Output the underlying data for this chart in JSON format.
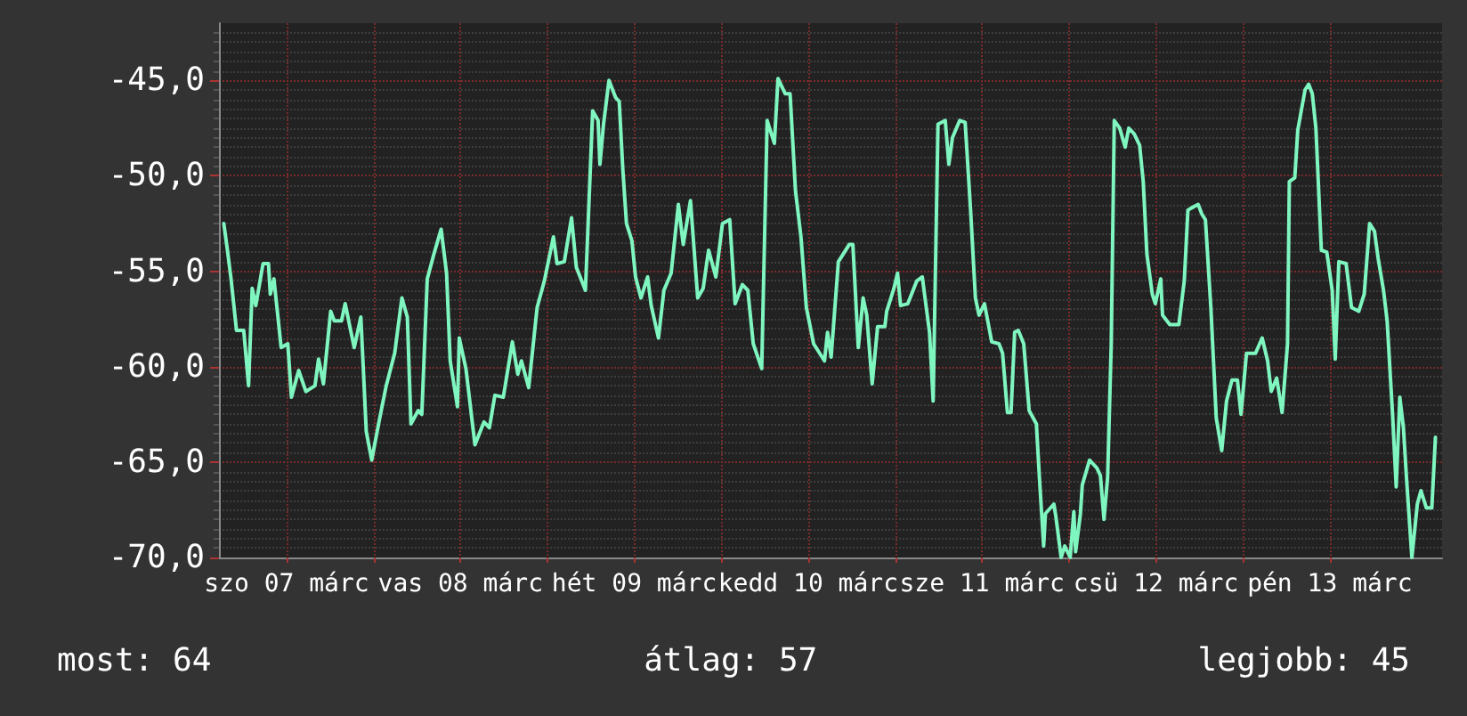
{
  "chart_data": {
    "type": "line",
    "marker": "none",
    "line_style": "solid",
    "grid": true,
    "xlim": [
      "--03-07T02:40",
      "--03-14T03:30"
    ],
    "xticks": [
      {
        "value": "--03-07T12:00",
        "label": "szo 07 márc"
      },
      {
        "value": "--03-08T00:00",
        "label": null
      },
      {
        "value": "--03-08T12:00",
        "label": "vas 08 márc"
      },
      {
        "value": "--03-09T00:00",
        "label": null
      },
      {
        "value": "--03-09T12:00",
        "label": "hét 09 márc"
      },
      {
        "value": "--03-10T00:00",
        "label": null
      },
      {
        "value": "--03-10T12:00",
        "label": "kedd 10 márc"
      },
      {
        "value": "--03-11T00:00",
        "label": null
      },
      {
        "value": "--03-11T12:00",
        "label": "sze 11 márc"
      },
      {
        "value": "--03-12T00:00",
        "label": null
      },
      {
        "value": "--03-12T12:00",
        "label": "csü 12 márc"
      },
      {
        "value": "--03-13T00:00",
        "label": null
      },
      {
        "value": "--03-13T12:00",
        "label": "pén 13 márc"
      }
    ],
    "ylim": [
      -70,
      -42
    ],
    "yticks": [
      {
        "value": -70,
        "label": "-70,0"
      },
      {
        "value": -65,
        "label": "-65,0"
      },
      {
        "value": -60,
        "label": "-60,0"
      },
      {
        "value": -55,
        "label": "-55,0"
      },
      {
        "value": -50,
        "label": "-50,0"
      },
      {
        "value": -45,
        "label": "-45,0"
      }
    ],
    "annotations": [
      "most: 64",
      "átlag: 57",
      "legjobb: 45"
    ],
    "series": [
      {
        "color": "#7ff5c0",
        "x": [
          "--03-07T03:20",
          "--03-07T03:50",
          "--03-07T04:20",
          "--03-07T05:05",
          "--03-07T06:05",
          "--03-07T06:45",
          "--03-07T07:15",
          "--03-07T07:45",
          "--03-07T08:45",
          "--03-07T09:30",
          "--03-07T09:45",
          "--03-07T10:15",
          "--03-07T11:15",
          "--03-07T12:10",
          "--03-07T12:40",
          "--03-07T13:40",
          "--03-07T14:40",
          "--03-07T15:55",
          "--03-07T16:25",
          "--03-07T17:05",
          "--03-07T18:05",
          "--03-07T18:35",
          "--03-07T19:35",
          "--03-07T20:05",
          "--03-07T21:20",
          "--03-07T22:15",
          "--03-07T23:00",
          "--03-07T23:45",
          "--03-08T00:45",
          "--03-08T01:45",
          "--03-08T02:55",
          "--03-08T03:55",
          "--03-08T04:40",
          "--03-08T05:10",
          "--03-08T06:10",
          "--03-08T06:40",
          "--03-08T07:25",
          "--03-08T08:20",
          "--03-08T09:20",
          "--03-08T10:05",
          "--03-08T10:35",
          "--03-08T11:35",
          "--03-08T11:50",
          "--03-08T12:45",
          "--03-08T14:00",
          "--03-08T15:15",
          "--03-08T16:00",
          "--03-08T16:45",
          "--03-08T17:55",
          "--03-08T19:10",
          "--03-08T19:55",
          "--03-08T20:25",
          "--03-08T21:25",
          "--03-08T22:35",
          "--03-08T23:35",
          "--03-09T00:50",
          "--03-09T01:20",
          "--03-09T02:20",
          "--03-09T03:20",
          "--03-09T04:00",
          "--03-09T05:15",
          "--03-09T06:15",
          "--03-09T07:00",
          "--03-09T07:15",
          "--03-09T07:45",
          "--03-09T08:30",
          "--03-09T09:25",
          "--03-09T09:55",
          "--03-09T10:25",
          "--03-09T10:55",
          "--03-09T11:40",
          "--03-09T12:10",
          "--03-09T12:55",
          "--03-09T13:50",
          "--03-09T14:20",
          "--03-09T15:20",
          "--03-09T16:05",
          "--03-09T17:05",
          "--03-09T18:05",
          "--03-09T18:45",
          "--03-09T19:45",
          "--03-09T20:45",
          "--03-09T21:30",
          "--03-09T22:15",
          "--03-09T23:15",
          "--03-10T00:10",
          "--03-10T01:10",
          "--03-10T01:55",
          "--03-10T02:55",
          "--03-10T03:40",
          "--03-10T04:25",
          "--03-10T05:35",
          "--03-10T06:20",
          "--03-10T07:20",
          "--03-10T07:50",
          "--03-10T08:50",
          "--03-10T09:30",
          "--03-10T10:15",
          "--03-10T11:00",
          "--03-10T11:45",
          "--03-10T12:45",
          "--03-10T14:15",
          "--03-10T14:40",
          "--03-10T15:10",
          "--03-10T16:10",
          "--03-10T17:40",
          "--03-10T18:10",
          "--03-10T18:55",
          "--03-10T19:35",
          "--03-10T20:05",
          "--03-10T20:50",
          "--03-10T21:35",
          "--03-10T22:35",
          "--03-10T22:50",
          "--03-10T23:50",
          "--03-11T00:20",
          "--03-11T00:45",
          "--03-11T01:45",
          "--03-11T03:00",
          "--03-11T03:45",
          "--03-11T04:45",
          "--03-11T05:15",
          "--03-11T05:55",
          "--03-11T06:55",
          "--03-11T07:25",
          "--03-11T07:55",
          "--03-11T08:55",
          "--03-11T09:40",
          "--03-11T10:25",
          "--03-11T11:05",
          "--03-11T11:35",
          "--03-11T12:20",
          "--03-11T13:20",
          "--03-11T14:20",
          "--03-11T14:50",
          "--03-11T15:30",
          "--03-11T16:00",
          "--03-11T16:30",
          "--03-11T17:00",
          "--03-11T17:45",
          "--03-11T18:30",
          "--03-11T19:30",
          "--03-11T19:55",
          "--03-11T20:30",
          "--03-11T20:45",
          "--03-11T21:55",
          "--03-11T22:10",
          "--03-11T22:55",
          "--03-11T23:25",
          "--03-12T00:10",
          "--03-12T00:40",
          "--03-12T00:55",
          "--03-12T01:35",
          "--03-12T01:50",
          "--03-12T02:50",
          "--03-12T03:50",
          "--03-12T04:20",
          "--03-12T04:50",
          "--03-12T05:20",
          "--03-12T05:50",
          "--03-12T06:15",
          "--03-12T07:00",
          "--03-12T07:45",
          "--03-12T08:15",
          "--03-12T09:00",
          "--03-12T09:45",
          "--03-12T10:15",
          "--03-12T10:45",
          "--03-12T11:30",
          "--03-12T11:55",
          "--03-12T12:40",
          "--03-12T12:55",
          "--03-12T13:55",
          "--03-12T15:10",
          "--03-12T15:55",
          "--03-12T16:25",
          "--03-12T16:50",
          "--03-12T17:50",
          "--03-12T18:20",
          "--03-12T18:50",
          "--03-12T19:35",
          "--03-12T20:20",
          "--03-12T21:05",
          "--03-12T21:45",
          "--03-12T22:30",
          "--03-12T23:15",
          "--03-12T23:45",
          "--03-13T00:30",
          "--03-13T01:45",
          "--03-13T02:40",
          "--03-13T03:25",
          "--03-13T03:55",
          "--03-13T04:40",
          "--03-13T05:25",
          "--03-13T06:10",
          "--03-13T06:25",
          "--03-13T07:10",
          "--03-13T07:35",
          "--03-13T08:35",
          "--03-13T09:05",
          "--03-13T09:35",
          "--03-13T10:05",
          "--03-13T10:50",
          "--03-13T11:35",
          "--03-13T12:20",
          "--03-13T12:45",
          "--03-13T13:15",
          "--03-13T14:15",
          "--03-13T15:00",
          "--03-13T16:00",
          "--03-13T16:45",
          "--03-13T17:30",
          "--03-13T18:10",
          "--03-13T18:40",
          "--03-13T19:25",
          "--03-13T19:55",
          "--03-13T20:40",
          "--03-13T21:10",
          "--03-13T21:40",
          "--03-13T22:10",
          "--03-13T22:35",
          "--03-13T23:20",
          "--03-14T00:05",
          "--03-14T00:35",
          "--03-14T01:20",
          "--03-14T02:05",
          "--03-14T02:35"
        ],
        "values": [
          -52.5,
          -53.9,
          -55.4,
          -58.1,
          -58.1,
          -61.0,
          -55.9,
          -56.8,
          -54.6,
          -54.6,
          -56.2,
          -55.4,
          -59.0,
          -58.8,
          -61.6,
          -60.2,
          -61.3,
          -61.0,
          -59.6,
          -60.9,
          -57.1,
          -57.6,
          -57.6,
          -56.7,
          -59.0,
          -57.4,
          -63.4,
          -64.9,
          -62.9,
          -61.0,
          -59.3,
          -56.4,
          -57.4,
          -63.0,
          -62.3,
          -62.5,
          -55.4,
          -54.1,
          -52.8,
          -55.1,
          -59.7,
          -62.1,
          -58.5,
          -60.1,
          -64.1,
          -62.9,
          -63.2,
          -61.5,
          -61.6,
          -58.7,
          -60.4,
          -59.7,
          -61.1,
          -56.9,
          -55.5,
          -53.2,
          -54.6,
          -54.5,
          -52.2,
          -54.8,
          -56.0,
          -46.6,
          -47.1,
          -49.4,
          -47.3,
          -45.0,
          -45.9,
          -46.1,
          -49.7,
          -52.5,
          -53.4,
          -55.3,
          -56.4,
          -55.3,
          -56.8,
          -58.5,
          -56.0,
          -55.1,
          -51.5,
          -53.6,
          -51.3,
          -56.4,
          -55.9,
          -53.9,
          -55.3,
          -52.5,
          -52.3,
          -56.7,
          -55.7,
          -56.0,
          -58.8,
          -60.1,
          -47.1,
          -48.3,
          -44.9,
          -45.7,
          -45.7,
          -50.8,
          -53.2,
          -56.9,
          -58.8,
          -59.7,
          -58.2,
          -59.5,
          -54.5,
          -53.6,
          -53.6,
          -59.0,
          -56.4,
          -57.3,
          -60.9,
          -57.9,
          -57.9,
          -57.1,
          -55.9,
          -55.1,
          -56.8,
          -56.7,
          -55.5,
          -55.3,
          -58.2,
          -61.8,
          -47.3,
          -47.1,
          -49.4,
          -48.0,
          -47.1,
          -47.2,
          -51.8,
          -56.4,
          -57.3,
          -56.7,
          -58.7,
          -58.8,
          -59.3,
          -62.4,
          -62.4,
          -58.2,
          -58.1,
          -58.8,
          -62.3,
          -63.0,
          -65.8,
          -69.4,
          -67.7,
          -67.2,
          -67.8,
          -70.0,
          -69.4,
          -70.0,
          -67.6,
          -69.7,
          -67.7,
          -66.2,
          -64.9,
          -65.3,
          -65.7,
          -68.0,
          -65.8,
          -58.8,
          -47.1,
          -47.5,
          -48.5,
          -47.5,
          -47.8,
          -48.4,
          -50.3,
          -54.1,
          -56.2,
          -56.7,
          -55.4,
          -57.3,
          -57.8,
          -57.8,
          -55.5,
          -51.8,
          -51.7,
          -51.5,
          -52.0,
          -52.3,
          -56.9,
          -62.7,
          -64.4,
          -61.8,
          -60.7,
          -60.7,
          -62.5,
          -59.3,
          -59.3,
          -58.5,
          -59.7,
          -61.3,
          -60.6,
          -62.4,
          -58.8,
          -50.3,
          -50.1,
          -47.6,
          -45.5,
          -45.2,
          -45.7,
          -47.5,
          -53.9,
          -54.0,
          -56.0,
          -59.6,
          -54.5,
          -54.6,
          -56.9,
          -57.1,
          -56.2,
          -52.5,
          -52.9,
          -54.3,
          -56.0,
          -57.6,
          -62.5,
          -66.3,
          -61.6,
          -63.2,
          -65.8,
          -70.0,
          -67.2,
          -66.5,
          -67.4,
          -67.4,
          -63.7
        ]
      }
    ]
  }
}
